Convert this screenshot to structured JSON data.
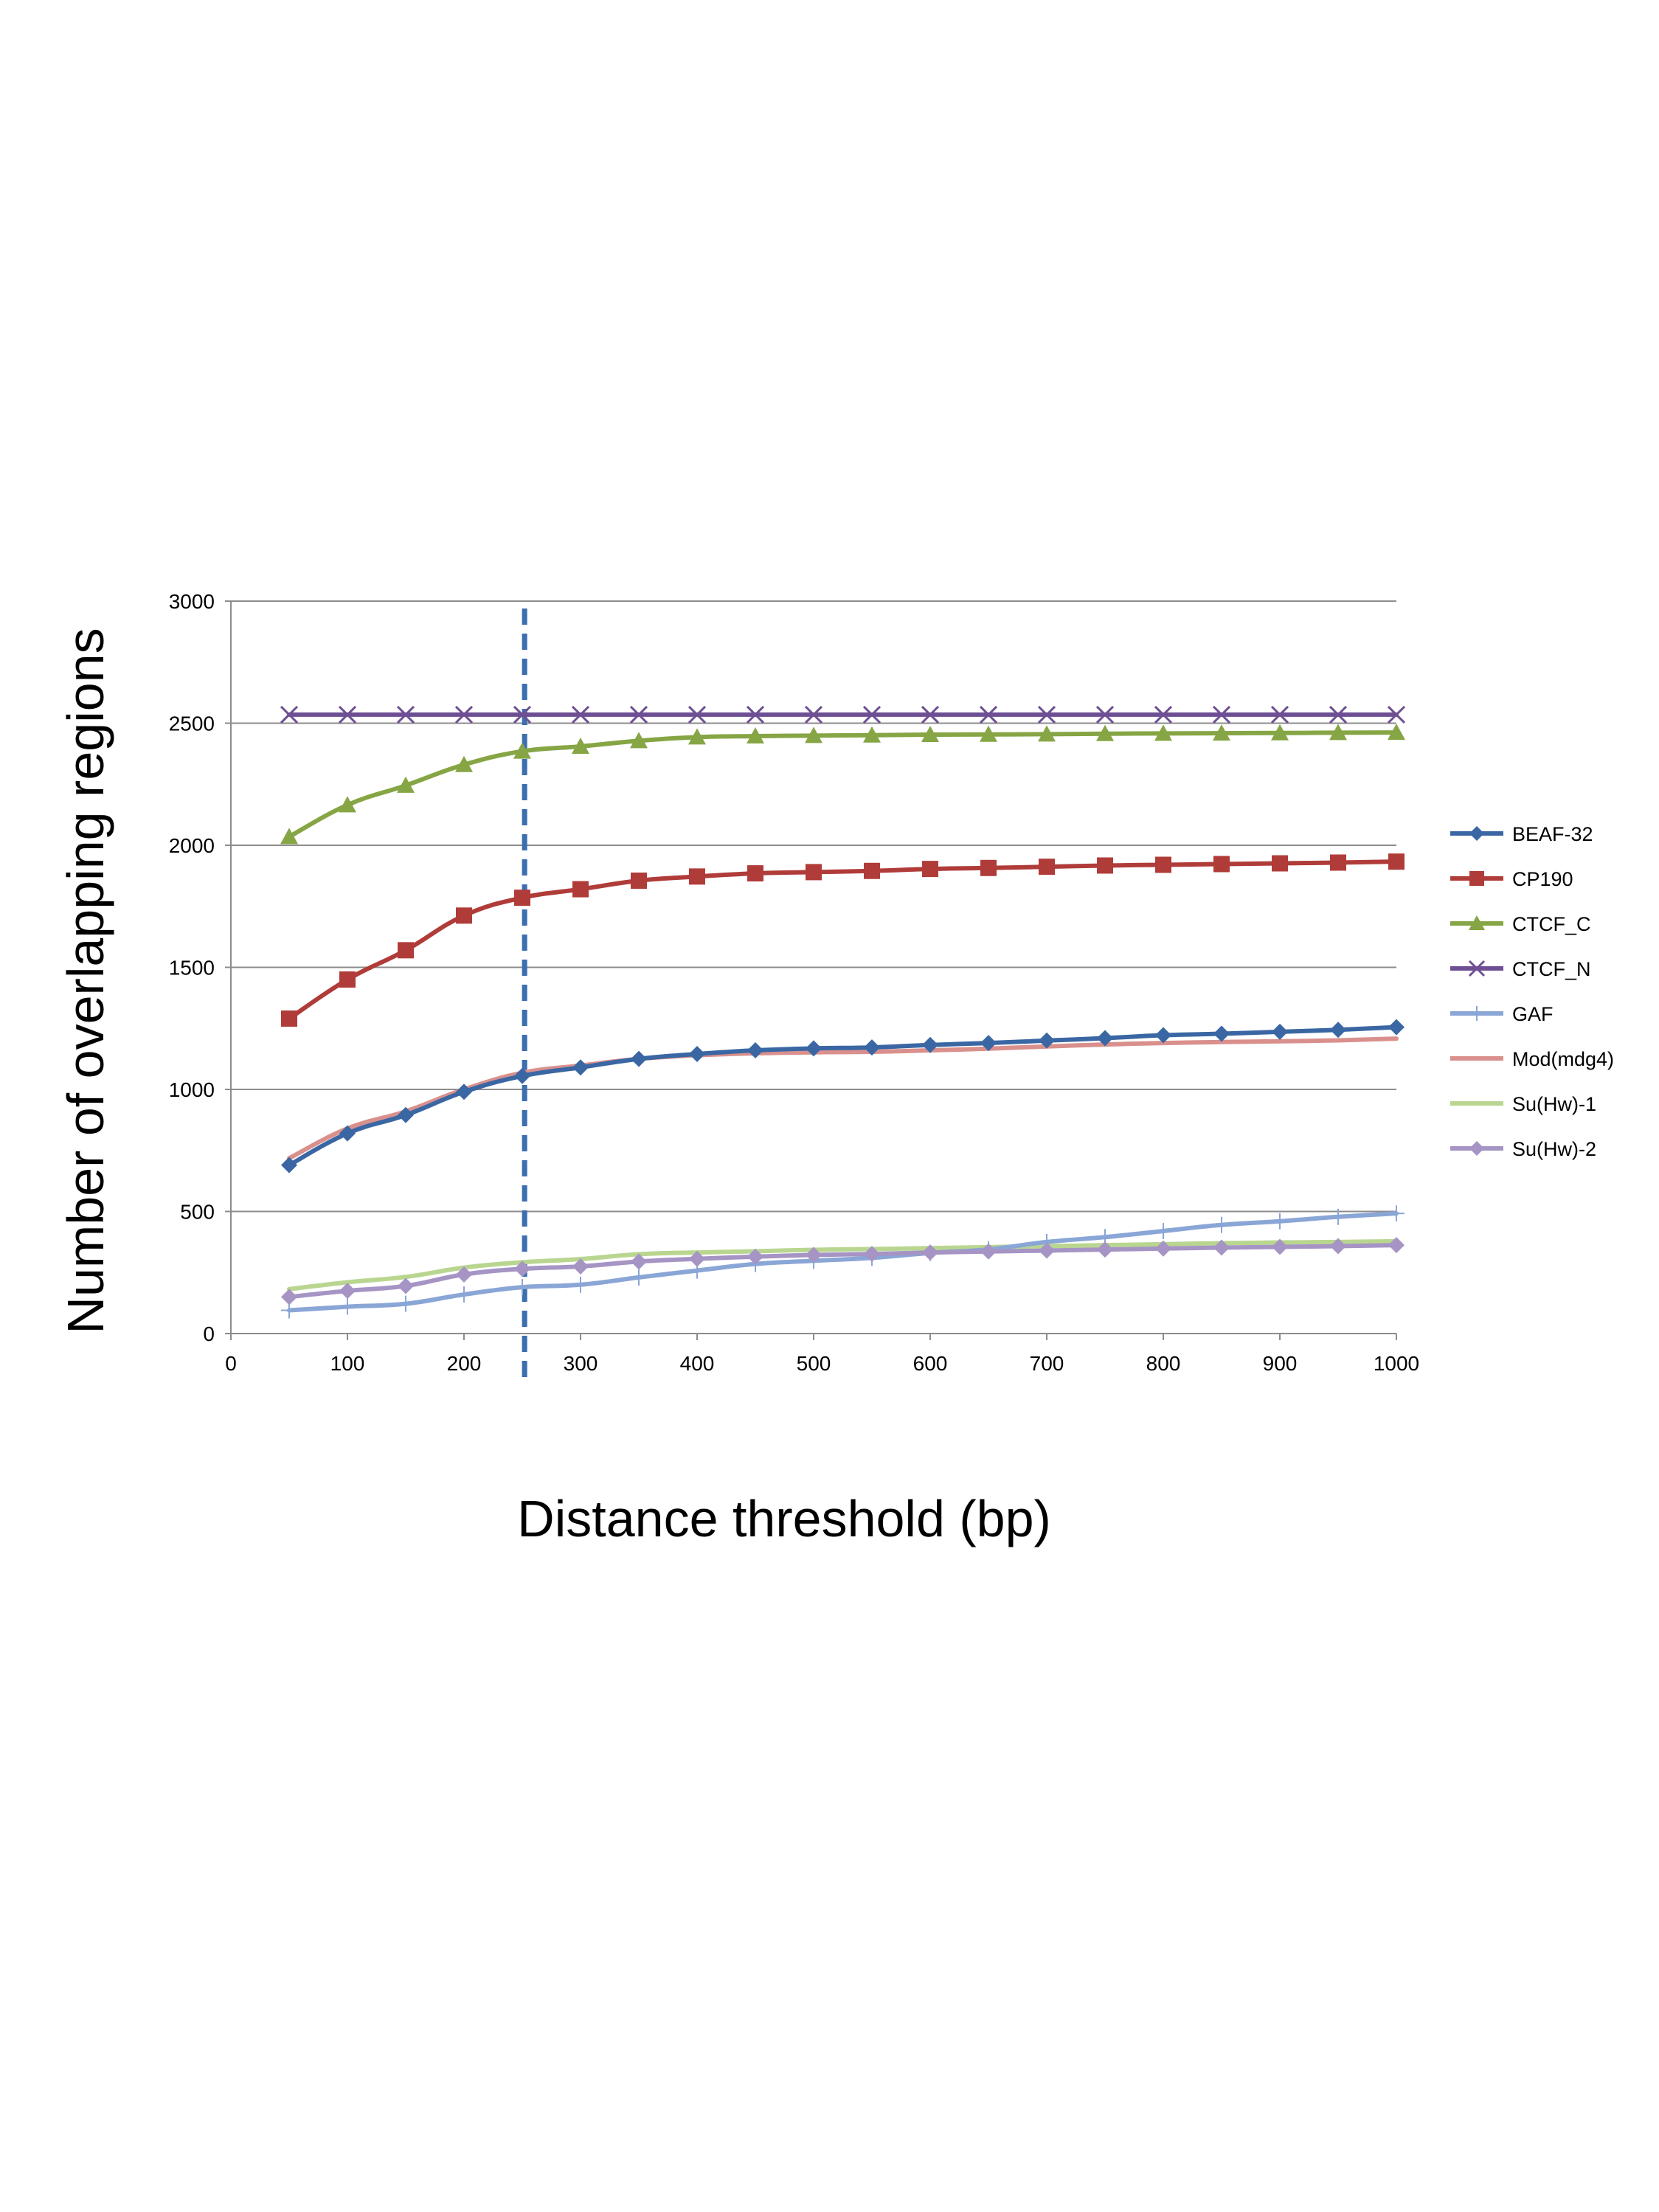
{
  "chart_data": {
    "type": "line",
    "xlabel": "Distance threshold (bp)",
    "ylabel": "Number of overlapping regions",
    "xlim": [
      0,
      1000
    ],
    "ylim": [
      0,
      3000
    ],
    "x_ticks": [
      0,
      100,
      200,
      300,
      400,
      500,
      600,
      700,
      800,
      900,
      1000
    ],
    "y_ticks": [
      0,
      500,
      1000,
      1500,
      2000,
      2500,
      3000
    ],
    "grid": "horizontal",
    "legend_position": "right",
    "threshold_line": {
      "x": 252,
      "style": "dashed",
      "color": "#3b6fb0"
    },
    "x": [
      50,
      100,
      150,
      200,
      250,
      300,
      350,
      400,
      450,
      500,
      550,
      600,
      650,
      700,
      750,
      800,
      850,
      900,
      950,
      1000
    ],
    "series": [
      {
        "name": "BEAF-32",
        "color": "#3a67a3",
        "marker": "diamond",
        "values": [
          690,
          820,
          895,
          990,
          1055,
          1090,
          1125,
          1145,
          1160,
          1168,
          1172,
          1182,
          1190,
          1200,
          1210,
          1222,
          1228,
          1236,
          1244,
          1255
        ]
      },
      {
        "name": "CP190",
        "color": "#b03c3a",
        "marker": "square",
        "values": [
          1290,
          1450,
          1570,
          1712,
          1785,
          1820,
          1855,
          1872,
          1885,
          1890,
          1895,
          1903,
          1907,
          1912,
          1917,
          1920,
          1923,
          1926,
          1929,
          1933
        ]
      },
      {
        "name": "CTCF_C",
        "color": "#86a544",
        "marker": "triangle",
        "values": [
          2035,
          2165,
          2245,
          2330,
          2385,
          2405,
          2428,
          2443,
          2447,
          2449,
          2451,
          2453,
          2454,
          2455,
          2457,
          2458,
          2459,
          2460,
          2461,
          2462
        ]
      },
      {
        "name": "CTCF_N",
        "color": "#6e4f93",
        "marker": "x",
        "values": [
          2535,
          2535,
          2535,
          2535,
          2535,
          2535,
          2535,
          2535,
          2535,
          2535,
          2535,
          2535,
          2535,
          2535,
          2535,
          2535,
          2535,
          2535,
          2535,
          2535
        ]
      },
      {
        "name": "GAF",
        "color": "#8aa6d6",
        "marker": "plus",
        "values": [
          95,
          110,
          122,
          160,
          190,
          200,
          230,
          258,
          285,
          298,
          310,
          330,
          345,
          375,
          395,
          420,
          445,
          460,
          478,
          492
        ]
      },
      {
        "name": "Mod(mdg4)",
        "color": "#d9908d",
        "marker": "none",
        "values": [
          718,
          840,
          910,
          1000,
          1068,
          1098,
          1125,
          1140,
          1148,
          1152,
          1154,
          1160,
          1167,
          1176,
          1184,
          1190,
          1194,
          1197,
          1201,
          1208
        ]
      },
      {
        "name": "Su(Hw)-1",
        "color": "#b9d690",
        "marker": "none",
        "values": [
          182,
          210,
          232,
          270,
          292,
          305,
          325,
          332,
          337,
          343,
          346,
          350,
          354,
          358,
          362,
          366,
          370,
          373,
          375,
          378
        ]
      },
      {
        "name": "Su(Hw)-2",
        "color": "#a694c5",
        "marker": "diamond",
        "values": [
          150,
          175,
          195,
          242,
          265,
          275,
          295,
          306,
          315,
          322,
          326,
          332,
          336,
          340,
          344,
          348,
          352,
          355,
          358,
          362
        ]
      }
    ]
  }
}
